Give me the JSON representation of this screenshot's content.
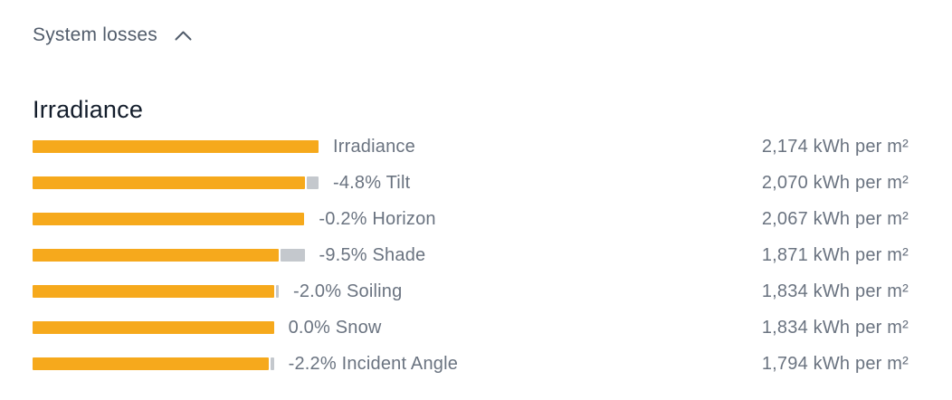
{
  "header": {
    "title": "System losses",
    "collapse_icon": "chevron-up-icon"
  },
  "colors": {
    "bar": "#f6a91c",
    "loss_segment": "#c4c8cd",
    "heading_text": "#131d2b",
    "header_text": "#515c6b",
    "label_text": "#6a7380"
  },
  "chart_data": {
    "type": "bar",
    "subtype": "horizontal-waterfall-losses",
    "title": "Irradiance",
    "unit": "kWh per m²",
    "legend_position": "none",
    "grid": false,
    "value_range": [
      0,
      2174
    ],
    "rows": [
      {
        "label": "Irradiance",
        "loss_pct": null,
        "value": 2174,
        "value_text": "2,174 kWh per m²"
      },
      {
        "label": "-4.8% Tilt",
        "loss_pct": -4.8,
        "value": 2070,
        "value_text": "2,070 kWh per m²"
      },
      {
        "label": "-0.2% Horizon",
        "loss_pct": -0.2,
        "value": 2067,
        "value_text": "2,067 kWh per m²"
      },
      {
        "label": "-9.5% Shade",
        "loss_pct": -9.5,
        "value": 1871,
        "value_text": "1,871 kWh per m²"
      },
      {
        "label": "-2.0% Soiling",
        "loss_pct": -2.0,
        "value": 1834,
        "value_text": "1,834 kWh per m²"
      },
      {
        "label": "0.0% Snow",
        "loss_pct": 0.0,
        "value": 1834,
        "value_text": "1,834 kWh per m²"
      },
      {
        "label": "-2.2% Incident Angle",
        "loss_pct": -2.2,
        "value": 1794,
        "value_text": "1,794 kWh per m²"
      }
    ]
  }
}
